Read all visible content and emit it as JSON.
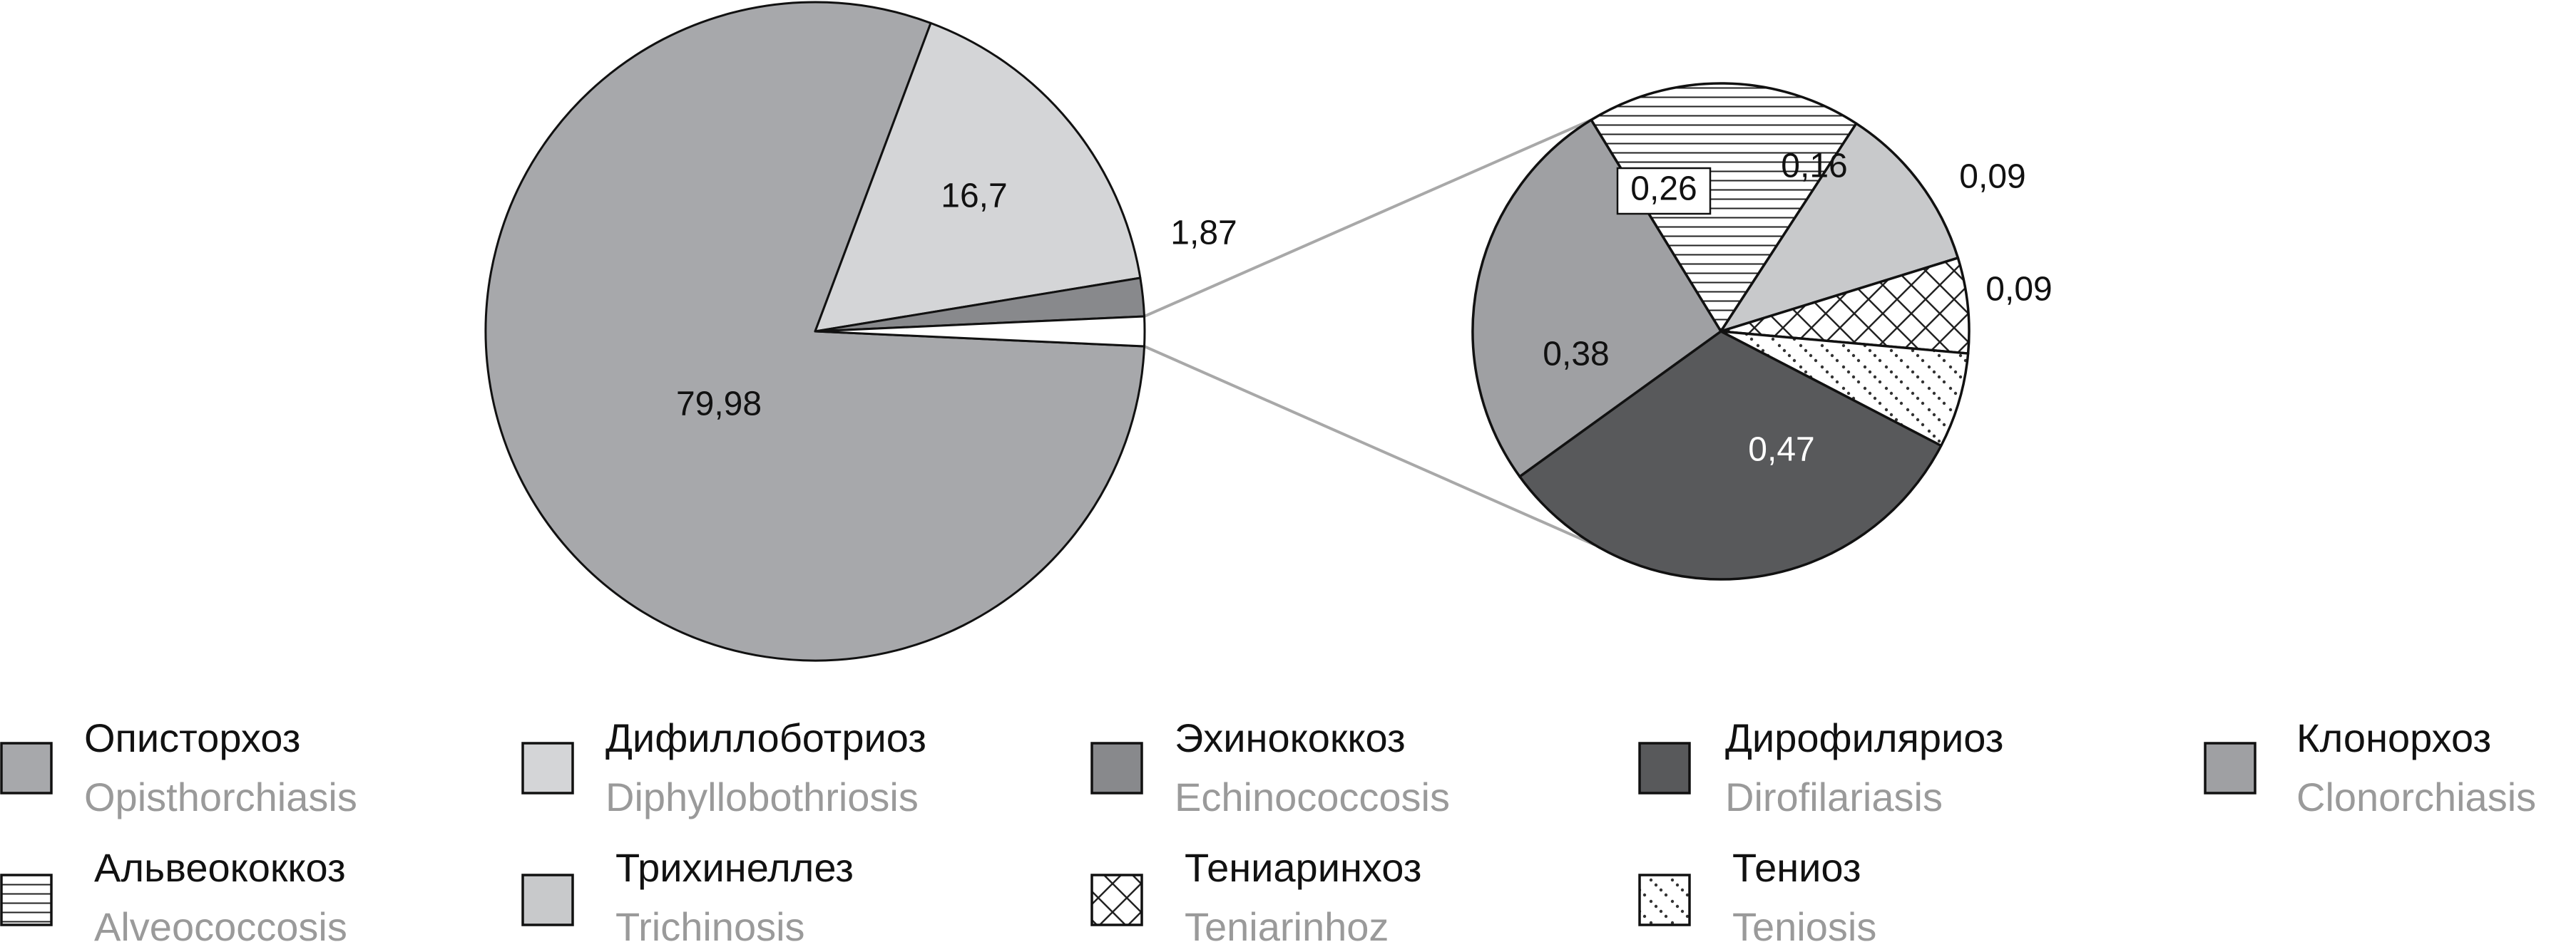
{
  "chart_data": [
    {
      "type": "pie",
      "slices": [
        {
          "key": "opisthorchiasis",
          "value": 79.98,
          "label": "79,98",
          "color": "#a7a8ab"
        },
        {
          "key": "diphyllobothriosis",
          "value": 16.7,
          "label": "16,7",
          "color": "#d4d5d7"
        },
        {
          "key": "echinococcosis",
          "value": 1.87,
          "label": "1,87",
          "color": "#88898c"
        },
        {
          "key": "other",
          "value": 1.45,
          "label": "",
          "color": "#ffffff"
        }
      ]
    },
    {
      "type": "pie",
      "slices": [
        {
          "key": "alveococcosis",
          "value": 0.26,
          "label": "0,26",
          "pattern": "horizontal-lines"
        },
        {
          "key": "trichinosis",
          "value": 0.16,
          "label": "0,16",
          "color": "#c8c9cb"
        },
        {
          "key": "teniarinhoz",
          "value": 0.09,
          "label": "0,09",
          "pattern": "crosshatch"
        },
        {
          "key": "teniosis",
          "value": 0.09,
          "label": "0,09",
          "pattern": "dots"
        },
        {
          "key": "dirofilariasis",
          "value": 0.47,
          "label": "0,47",
          "color": "#58595b"
        },
        {
          "key": "clonorchiasis",
          "value": 0.38,
          "label": "0,38",
          "color": "#9fa0a3"
        }
      ]
    }
  ],
  "legend": [
    {
      "key": "opisthorchiasis",
      "ru": "Описторхоз",
      "en": "Opisthorchiasis",
      "color": "#a7a8ab"
    },
    {
      "key": "diphyllobothriosis",
      "ru": "Дифиллоботриоз",
      "en": "Diphyllobothriosis",
      "color": "#d4d5d7"
    },
    {
      "key": "echinococcosis",
      "ru": "Эхинококкоз",
      "en": "Echinococcosis",
      "color": "#88898c"
    },
    {
      "key": "dirofilariasis",
      "ru": "Дирофиляриоз",
      "en": "Dirofilariasis",
      "color": "#58595b"
    },
    {
      "key": "clonorchiasis",
      "ru": "Клонорхоз",
      "en": "Clonorchiasis",
      "color": "#9fa0a3"
    },
    {
      "key": "alveococcosis",
      "ru": "Альвеококкоз",
      "en": "Alveococcosis",
      "pattern": "horizontal-lines"
    },
    {
      "key": "trichinosis",
      "ru": "Трихинеллез",
      "en": "Trichinosis",
      "color": "#c8c9cb"
    },
    {
      "key": "teniarinhoz",
      "ru": "Тениаринхоз",
      "en": "Teniarinhoz",
      "pattern": "crosshatch"
    },
    {
      "key": "teniosis",
      "ru": "Тениоз",
      "en": "Teniosis",
      "pattern": "dots"
    }
  ]
}
